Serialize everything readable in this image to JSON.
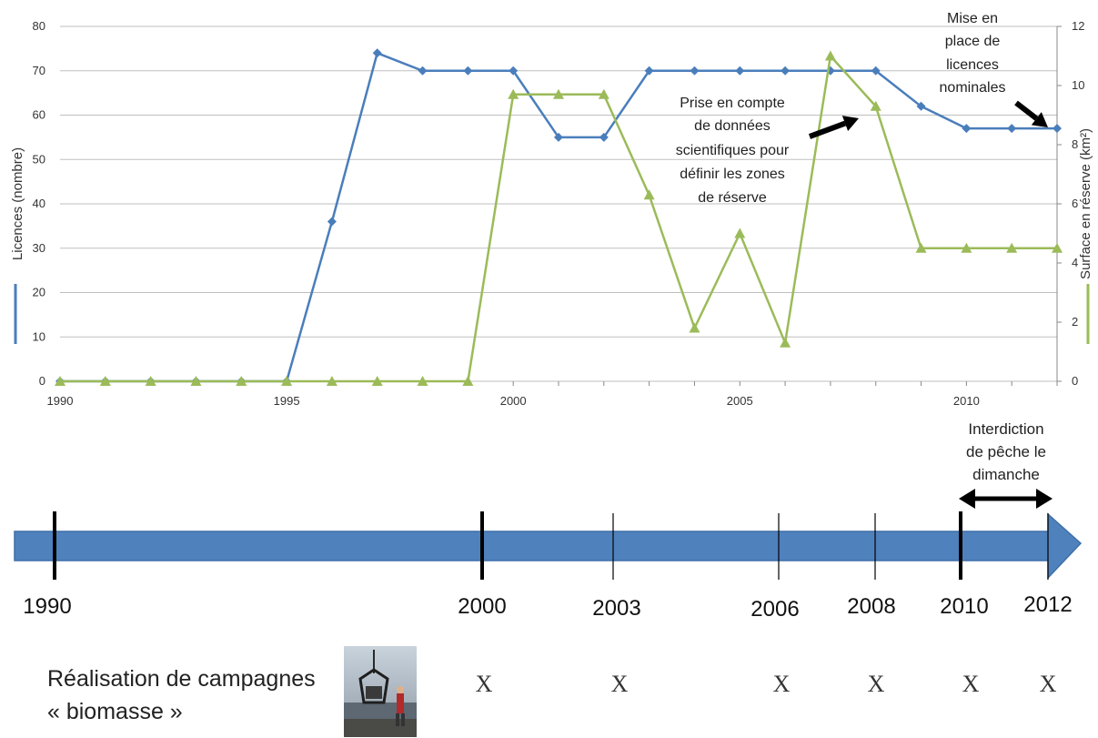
{
  "chart_data": {
    "type": "line",
    "title": "",
    "x": [
      1990,
      1991,
      1992,
      1993,
      1994,
      1995,
      1996,
      1997,
      1998,
      1999,
      2000,
      2001,
      2002,
      2003,
      2004,
      2005,
      2006,
      2007,
      2008,
      2009,
      2010,
      2011,
      2012
    ],
    "x_ticks": [
      "1990",
      "1995",
      "2000",
      "2005",
      "2010"
    ],
    "xlim": [
      1990,
      2012
    ],
    "ylabel": "Licences (nombre)",
    "ylim": [
      0,
      80
    ],
    "y_ticks": [
      "0",
      "10",
      "20",
      "30",
      "40",
      "50",
      "60",
      "70",
      "80"
    ],
    "y2label": "Surface en réserve (km²)",
    "y2lim": [
      0,
      12
    ],
    "y2_ticks": [
      "0",
      "2",
      "4",
      "6",
      "8",
      "10",
      "12"
    ],
    "grid": true,
    "series": [
      {
        "axis": "left",
        "color": "#4a7ebb",
        "marker": "diamond",
        "values": [
          0,
          0,
          0,
          0,
          0,
          0,
          36,
          74,
          70,
          70,
          70,
          55,
          55,
          70,
          70,
          70,
          70,
          70,
          70,
          62,
          57,
          57,
          57
        ]
      },
      {
        "axis": "right",
        "color": "#9bbb59",
        "marker": "triangle",
        "values": [
          0,
          0,
          0,
          0,
          0,
          0,
          0,
          0,
          0,
          0,
          9.7,
          9.7,
          9.7,
          6.3,
          1.8,
          5.0,
          1.3,
          11.0,
          9.3,
          4.5,
          4.5,
          4.5,
          4.5
        ]
      }
    ],
    "annotations": [
      {
        "text": [
          "Mise en",
          "place de",
          "licences",
          "nominales"
        ]
      },
      {
        "text": [
          "Prise en compte",
          "de données",
          "scientifiques pour",
          "définir les zones",
          "de réserve"
        ]
      }
    ]
  },
  "timeline": {
    "years": [
      "1990",
      "2000",
      "2003",
      "2006",
      "2008",
      "2010",
      "2012"
    ],
    "ban_label": [
      "Interdiction",
      "de pêche le",
      "dimanche"
    ],
    "campaign_label": [
      "Réalisation de campagnes",
      "« biomasse »"
    ],
    "campaign_marks": [
      "X",
      "X",
      "X",
      "X",
      "X",
      "X"
    ]
  },
  "colors": {
    "licences": "#4a7ebb",
    "reserve": "#9bbb59",
    "timeline_arrow": "#4f81bd",
    "grid": "#bfbfbf"
  }
}
